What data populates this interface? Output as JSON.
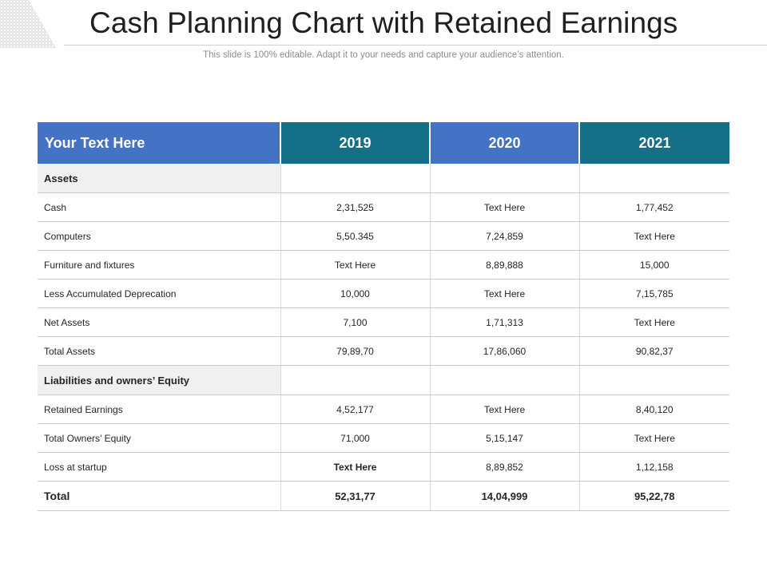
{
  "slide": {
    "title": "Cash Planning Chart with Retained Earnings",
    "subtitle": "This slide is 100% editable. Adapt it to your needs and capture your audience’s attention."
  },
  "table": {
    "headers": [
      "Your Text Here",
      "2019",
      "2020",
      "2021"
    ],
    "sections": [
      {
        "title": "Assets",
        "rows": [
          {
            "label": "Cash",
            "values": [
              "2,31,525",
              "Text Here",
              "1,77,452"
            ]
          },
          {
            "label": "Computers",
            "values": [
              "5,50.345",
              "7,24,859",
              "Text Here"
            ]
          },
          {
            "label": "Furniture  and fixtures",
            "values": [
              "Text Here",
              "8,89,888",
              "15,000"
            ]
          },
          {
            "label": "Less Accumulated Deprecation",
            "values": [
              "10,000",
              "Text Here",
              "7,15,785"
            ]
          },
          {
            "label": "Net Assets",
            "values": [
              "7,100",
              "1,71,313",
              "Text Here"
            ]
          },
          {
            "label": "Total Assets",
            "values": [
              "79,89,70",
              "17,86,060",
              "90,82,37"
            ]
          }
        ]
      },
      {
        "title": "Liabilities and owners’ Equity",
        "rows": [
          {
            "label": "Retained Earnings",
            "values": [
              "4,52,177",
              "Text Here",
              "8,40,120"
            ]
          },
          {
            "label": "Total Owners’ Equity",
            "values": [
              "71,000",
              "5,15,147",
              "Text Here"
            ]
          },
          {
            "label": "Loss at startup",
            "values": [
              "Text Here",
              "8,89,852",
              "1,12,158"
            ]
          }
        ]
      }
    ],
    "total": {
      "label": "Total",
      "values": [
        "52,31,77",
        "14,04,999",
        "95,22,78"
      ]
    }
  },
  "colors": {
    "header_blue": "#4472c4",
    "header_teal": "#156f87",
    "section_bg": "#f0f0f0"
  }
}
